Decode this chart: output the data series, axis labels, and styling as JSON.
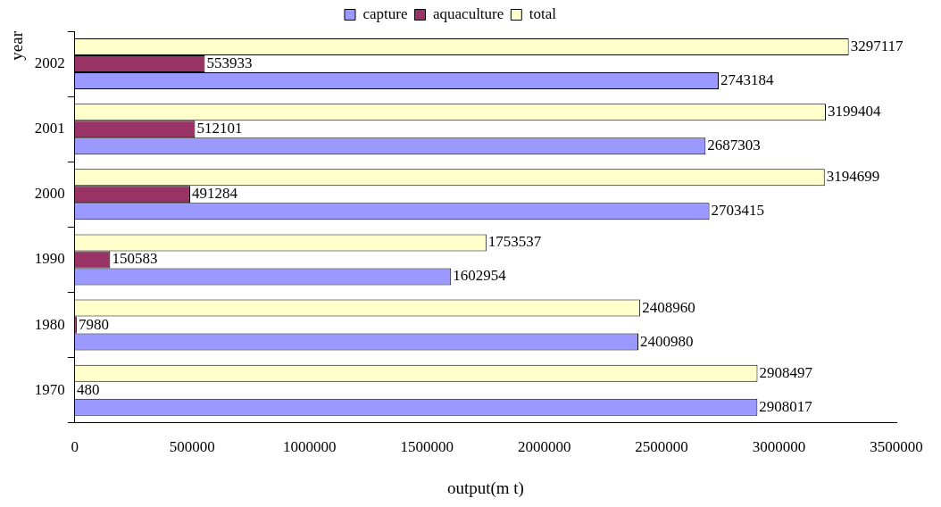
{
  "chart_data": {
    "type": "bar",
    "orientation": "horizontal",
    "xlabel": "output(m t)",
    "ylabel": "year",
    "categories": [
      "2002",
      "2001",
      "2000",
      "1990",
      "1980",
      "1970"
    ],
    "series": [
      {
        "name": "capture",
        "color": "#9999ff",
        "values": [
          2743184,
          2687303,
          2703415,
          1602954,
          2400980,
          2908017
        ]
      },
      {
        "name": "aquaculture",
        "color": "#993366",
        "values": [
          553933,
          512101,
          491284,
          150583,
          7980,
          480
        ]
      },
      {
        "name": "total",
        "color": "#ffffcc",
        "values": [
          3297117,
          3199404,
          3194699,
          1753537,
          2408960,
          2908497
        ]
      }
    ],
    "xlim": [
      0,
      3500000
    ],
    "xticks": [
      0,
      500000,
      1000000,
      1500000,
      2000000,
      2500000,
      3000000,
      3500000
    ],
    "data_labels": true,
    "grid": false,
    "legend": "top"
  }
}
